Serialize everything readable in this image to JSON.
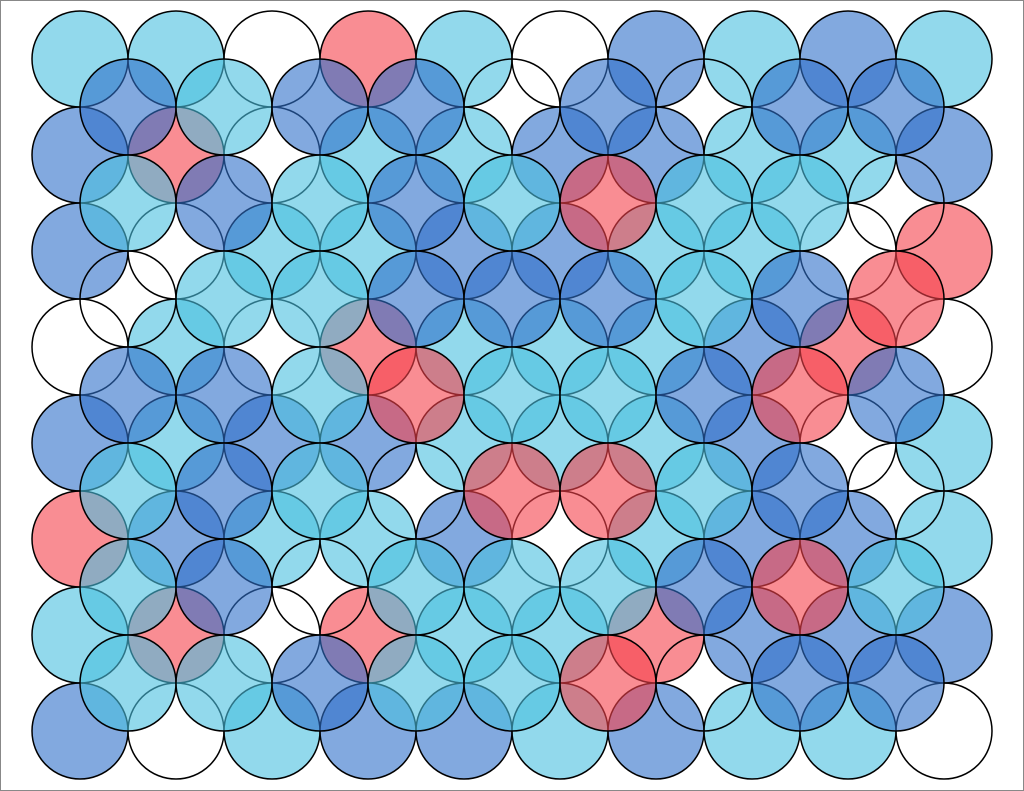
{
  "palette": {
    "c": "rgba(73,192,224,0.6)",
    "b": "rgba(47,111,201,0.6)",
    "r": "rgba(245,65,75,0.6)",
    "w": "none"
  },
  "grid_a": [
    "ccwrcwbcbc",
    "brwccbbccb",
    "bwccbbccwr",
    "wcwrcccbrw",
    "bcbbcccbwc",
    "rbccbwcbbc",
    "crwrccrbbb",
    "bwcbbcbccw"
  ],
  "grid_b": [
    "bcbbwbwbb",
    "cbcbcrccw",
    "wccbbbcbr",
    "bbcrccbrb",
    "cbcwrrcbw",
    "cbwcccbrc",
    "ccbccrwbb"
  ]
}
